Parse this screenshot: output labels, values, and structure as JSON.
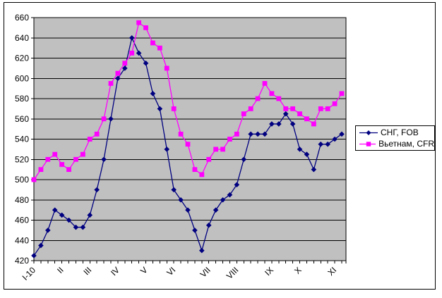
{
  "window": {
    "background_color": "#FFFFFF",
    "frame_border_color": "#000000"
  },
  "legend": {
    "position": "right",
    "entries": [
      {
        "label": "СНГ, FOB",
        "marker": "diamond",
        "color": "#000080"
      },
      {
        "label": "Вьетнам, CFR",
        "marker": "square",
        "color": "#FF00FF"
      }
    ]
  },
  "chart_data": {
    "type": "line",
    "title": "",
    "xlabel": "",
    "ylabel": "",
    "ylim": [
      420,
      660
    ],
    "ytick_step": 20,
    "ytick_labels": [
      "420",
      "440",
      "460",
      "480",
      "500",
      "520",
      "540",
      "560",
      "580",
      "600",
      "620",
      "640",
      "660"
    ],
    "grid": true,
    "legend_position": "right",
    "categories": [
      "I-10",
      "II",
      "III",
      "IV",
      "V",
      "VI",
      "VII",
      "VIII",
      "IX",
      "X",
      "XI"
    ],
    "category_positions": [
      0,
      4,
      8,
      12,
      16,
      20,
      25,
      29,
      34,
      38,
      43
    ],
    "x_point_count": 45,
    "series": [
      {
        "name": "СНГ, FOB",
        "color": "#000080",
        "marker": "diamond",
        "values": [
          425,
          435,
          450,
          470,
          465,
          460,
          453,
          453,
          465,
          490,
          520,
          560,
          600,
          610,
          640,
          625,
          615,
          585,
          570,
          530,
          490,
          480,
          470,
          450,
          430,
          455,
          470,
          480,
          485,
          495,
          520,
          545,
          545,
          545,
          555,
          555,
          565,
          555,
          530,
          525,
          510,
          535,
          535,
          540,
          545
        ]
      },
      {
        "name": "Вьетнам, CFR",
        "color": "#FF00FF",
        "marker": "square",
        "values": [
          500,
          510,
          520,
          525,
          515,
          510,
          520,
          525,
          540,
          545,
          560,
          595,
          605,
          615,
          625,
          655,
          650,
          635,
          630,
          610,
          570,
          545,
          535,
          510,
          505,
          520,
          530,
          530,
          540,
          545,
          565,
          570,
          580,
          595,
          585,
          580,
          570,
          570,
          565,
          560,
          555,
          570,
          570,
          575,
          585
        ]
      }
    ],
    "colors": {
      "plot_bg": "#C0C0C0",
      "gridline": "#000000",
      "axis": "#000000",
      "text": "#000000"
    }
  }
}
